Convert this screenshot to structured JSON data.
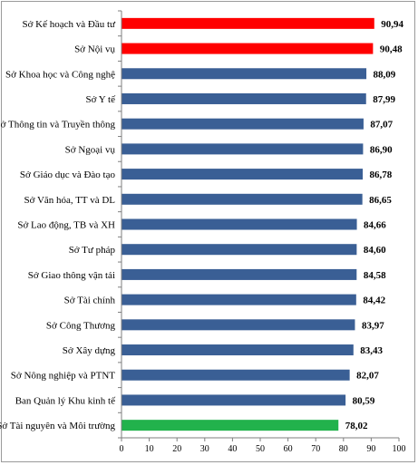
{
  "chart_data": {
    "type": "bar",
    "orientation": "horizontal",
    "title": "",
    "xlabel": "",
    "ylabel": "",
    "xlim": [
      0,
      100
    ],
    "x_ticks": [
      0,
      10,
      20,
      30,
      40,
      50,
      60,
      70,
      80,
      90,
      100
    ],
    "grid": false,
    "legend": "none",
    "colors": {
      "highlight_top": "#ff0000",
      "default": "#3a5f95",
      "highlight_bottom": "#22b24c"
    },
    "bars": [
      {
        "label": "Sở Kế hoạch và Đầu tư",
        "value": 90.94,
        "value_label": "90,94",
        "color": "#ff0000"
      },
      {
        "label": "Sở Nội vụ",
        "value": 90.48,
        "value_label": "90,48",
        "color": "#ff0000"
      },
      {
        "label": "Sở Khoa học và Công nghệ",
        "value": 88.09,
        "value_label": "88,09",
        "color": "#3a5f95"
      },
      {
        "label": "Sở Y tế",
        "value": 87.99,
        "value_label": "87,99",
        "color": "#3a5f95"
      },
      {
        "label": "Sở Thông tin và Truyền thông",
        "value": 87.07,
        "value_label": "87,07",
        "color": "#3a5f95"
      },
      {
        "label": "Sở Ngoại vụ",
        "value": 86.9,
        "value_label": "86,90",
        "color": "#3a5f95"
      },
      {
        "label": "Sở Giáo dục và Đào tạo",
        "value": 86.78,
        "value_label": "86,78",
        "color": "#3a5f95"
      },
      {
        "label": "Sở Văn hóa, TT và DL",
        "value": 86.65,
        "value_label": "86,65",
        "color": "#3a5f95"
      },
      {
        "label": "Sở Lao động, TB và XH",
        "value": 84.66,
        "value_label": "84,66",
        "color": "#3a5f95"
      },
      {
        "label": "Sở Tư pháp",
        "value": 84.6,
        "value_label": "84,60",
        "color": "#3a5f95"
      },
      {
        "label": "Sở Giao thông vận tải",
        "value": 84.58,
        "value_label": "84,58",
        "color": "#3a5f95"
      },
      {
        "label": "Sở Tài chính",
        "value": 84.42,
        "value_label": "84,42",
        "color": "#3a5f95"
      },
      {
        "label": "Sở Công Thương",
        "value": 83.97,
        "value_label": "83,97",
        "color": "#3a5f95"
      },
      {
        "label": "Sở Xây dựng",
        "value": 83.43,
        "value_label": "83,43",
        "color": "#3a5f95"
      },
      {
        "label": "Sở Nông nghiệp và PTNT",
        "value": 82.07,
        "value_label": "82,07",
        "color": "#3a5f95"
      },
      {
        "label": "Ban Quản lý Khu kinh tế",
        "value": 80.59,
        "value_label": "80,59",
        "color": "#3a5f95"
      },
      {
        "label": "Sở Tài nguyên và Môi trường",
        "value": 78.02,
        "value_label": "78,02",
        "color": "#22b24c"
      }
    ]
  }
}
